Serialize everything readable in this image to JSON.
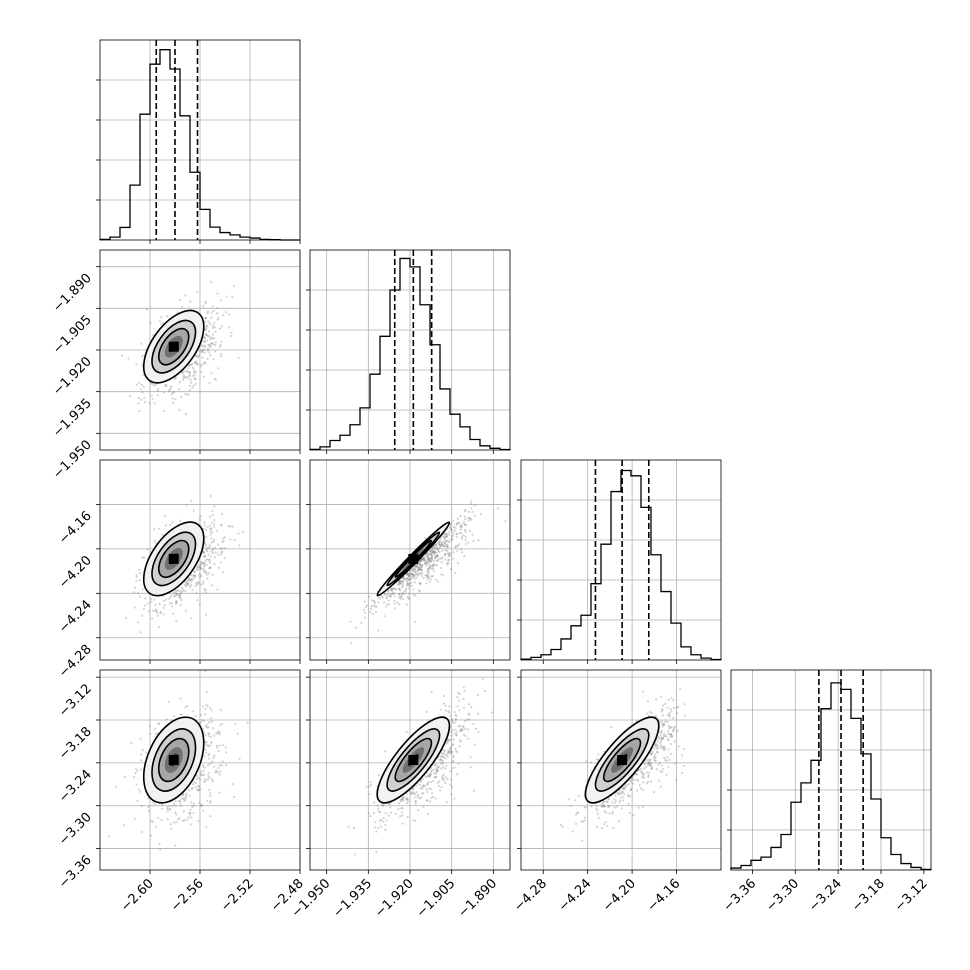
{
  "chart_data": {
    "type": "corner",
    "title": "",
    "grid": true,
    "hist_color": "#000000",
    "scatter_color": "#808080",
    "parameters": [
      {
        "index": 0,
        "range": [
          -2.64,
          -2.48
        ],
        "ticks": [
          -2.6,
          -2.56,
          -2.52,
          -2.48
        ],
        "tick_labels": [
          "−2.60",
          "−2.56",
          "−2.52",
          "−2.48"
        ],
        "quantiles": [
          -2.595,
          -2.58,
          -2.562
        ],
        "hist_bin_edges": [
          -2.64,
          -2.632,
          -2.624,
          -2.616,
          -2.608,
          -2.6,
          -2.592,
          -2.584,
          -2.576,
          -2.568,
          -2.56,
          -2.552,
          -2.544,
          -2.536,
          -2.528,
          -2.52,
          -2.512,
          -2.504,
          -2.496,
          -2.488,
          -2.48
        ],
        "hist_counts": [
          0.2,
          0.9,
          3.9,
          17,
          39,
          54.5,
          59,
          53,
          38.5,
          21,
          9.5,
          4,
          2.3,
          1.6,
          0.9,
          0.6,
          0.2,
          0.1,
          0,
          0
        ],
        "hist_ymax": 62
      },
      {
        "index": 1,
        "range": [
          -1.956,
          -1.884
        ],
        "ticks": [
          -1.95,
          -1.935,
          -1.92,
          -1.905,
          -1.89
        ],
        "tick_labels": [
          "−1.950",
          "−1.935",
          "−1.920",
          "−1.905",
          "−1.890"
        ],
        "quantiles": [
          -1.9255,
          -1.9188,
          -1.9122
        ],
        "hist_bin_edges": [
          -1.956,
          -1.9524,
          -1.9488,
          -1.9452,
          -1.9416,
          -1.938,
          -1.9344,
          -1.9308,
          -1.9272,
          -1.9236,
          -1.92,
          -1.9164,
          -1.9128,
          -1.9092,
          -1.9056,
          -1.902,
          -1.8984,
          -1.8948,
          -1.8912,
          -1.8876,
          -1.884
        ],
        "hist_counts": [
          0.3,
          1.5,
          4.5,
          7,
          12,
          20,
          36,
          54,
          76,
          91,
          87,
          69,
          50,
          29,
          17,
          11,
          5,
          2,
          0.8,
          0.2
        ],
        "hist_ymax": 95
      },
      {
        "index": 2,
        "range": [
          -4.3,
          -4.12
        ],
        "ticks": [
          -4.28,
          -4.24,
          -4.2,
          -4.16
        ],
        "tick_labels": [
          "−4.28",
          "−4.24",
          "−4.20",
          "−4.16"
        ],
        "quantiles": [
          -4.233,
          -4.209,
          -4.185
        ],
        "hist_bin_edges": [
          -4.3,
          -4.291,
          -4.282,
          -4.273,
          -4.264,
          -4.255,
          -4.246,
          -4.237,
          -4.228,
          -4.219,
          -4.21,
          -4.201,
          -4.192,
          -4.183,
          -4.174,
          -4.165,
          -4.156,
          -4.147,
          -4.138,
          -4.129,
          -4.12
        ],
        "hist_counts": [
          0.3,
          1,
          2,
          4,
          8,
          13,
          17,
          29,
          44,
          64,
          72,
          70,
          58,
          40,
          26,
          14,
          5,
          2,
          0.7,
          0.2
        ],
        "hist_ymax": 76
      },
      {
        "index": 3,
        "range": [
          -3.39,
          -3.11
        ],
        "ticks": [
          -3.36,
          -3.3,
          -3.24,
          -3.18,
          -3.12
        ],
        "tick_labels": [
          "−3.36",
          "−3.30",
          "−3.24",
          "−3.18",
          "−3.12"
        ],
        "quantiles": [
          -3.267,
          -3.236,
          -3.205
        ],
        "hist_bin_edges": [
          -3.39,
          -3.376,
          -3.362,
          -3.348,
          -3.334,
          -3.32,
          -3.306,
          -3.292,
          -3.278,
          -3.264,
          -3.25,
          -3.236,
          -3.222,
          -3.208,
          -3.194,
          -3.18,
          -3.166,
          -3.152,
          -3.138,
          -3.124,
          -3.11
        ],
        "hist_counts": [
          0.3,
          0.7,
          1.5,
          2,
          3.5,
          5.5,
          10.5,
          13.5,
          17,
          25,
          29,
          28,
          23.5,
          18,
          11,
          5,
          2.4,
          1,
          0.4,
          0.1
        ],
        "hist_ymax": 31
      }
    ],
    "pairs": [
      {
        "x": 0,
        "y": 1,
        "center": [
          -2.581,
          -1.9188
        ],
        "sigma": [
          0.012,
          0.0065
        ],
        "rho": 0.55
      },
      {
        "x": 0,
        "y": 2,
        "center": [
          -2.581,
          -4.209
        ],
        "sigma": [
          0.012,
          0.0165
        ],
        "rho": 0.55
      },
      {
        "x": 1,
        "y": 2,
        "center": [
          -1.9188,
          -4.209
        ],
        "sigma": [
          0.0065,
          0.0165
        ],
        "rho": 0.985
      },
      {
        "x": 0,
        "y": 3,
        "center": [
          -2.581,
          -3.236
        ],
        "sigma": [
          0.012,
          0.03
        ],
        "rho": 0.4
      },
      {
        "x": 1,
        "y": 3,
        "center": [
          -1.9188,
          -3.236
        ],
        "sigma": [
          0.0065,
          0.03
        ],
        "rho": 0.8
      },
      {
        "x": 2,
        "y": 3,
        "center": [
          -4.209,
          -3.236
        ],
        "sigma": [
          0.0165,
          0.03
        ],
        "rho": 0.8
      }
    ]
  }
}
